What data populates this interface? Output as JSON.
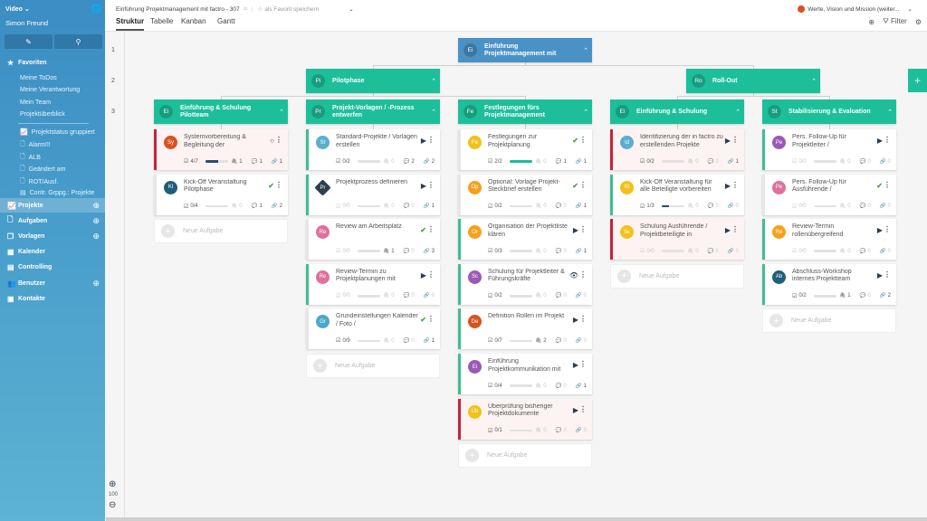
{
  "sidebar": {
    "workspace": "Video",
    "user": "Simon Freund",
    "favorites_label": "Favoriten",
    "favorites": [
      "Meine ToDos",
      "Meine Verantwortung",
      "Mein Team",
      "Projektüberblick"
    ],
    "saved_views": [
      "Projektstatus gruppiert",
      "Alarm!!!",
      "ALB",
      "Geändert am",
      "ROT/Ausf.",
      "Contr. Grppg.: Projekte"
    ],
    "nav": [
      {
        "label": "Projekte",
        "plus": true,
        "active": true,
        "icon": "chart-icon"
      },
      {
        "label": "Aufgaben",
        "plus": true,
        "icon": "file-icon"
      },
      {
        "label": "Vorlagen",
        "plus": true,
        "icon": "copy-icon"
      },
      {
        "label": "Kalender",
        "icon": "calendar-icon"
      },
      {
        "label": "Controlling",
        "icon": "calculator-icon"
      },
      {
        "label": "Benutzer",
        "plus": true,
        "icon": "users-icon"
      },
      {
        "label": "Kontakte",
        "icon": "contact-icon"
      }
    ]
  },
  "topbar": {
    "project_title": "Einführung Projektmanagement mit factro - 307",
    "favorite_label": "als Favorit speichern",
    "tabs": [
      "Struktur",
      "Tabelle",
      "Kanban",
      "Gantt"
    ],
    "active_tab": "Struktur",
    "project_selector": "Werte, Vision und Mission (weiter...",
    "project_color": "#d9531e",
    "filter_label": "Filter"
  },
  "zoom": {
    "level": "100"
  },
  "rows": [
    "1",
    "2",
    "3"
  ],
  "new_task_label": "Neue Aufgabe",
  "root": {
    "abbr": "Ei",
    "title": "Einführung Projektmanagement mit"
  },
  "phases": [
    {
      "abbr": "Pi",
      "title": "Pilotphase"
    },
    {
      "abbr": "Ro",
      "title": "Roll-Out"
    }
  ],
  "columns": [
    {
      "abbr": "Ei",
      "title": "Einführung & Schulung Pilotteam",
      "cards": [
        {
          "abbr": "Sy",
          "color": "#d9531e",
          "title": "Systemvorbereitung & Begleitung der",
          "status": "circle",
          "border": "red",
          "check": "4/7",
          "progress": 57,
          "bar": "#2c4a6e",
          "att": 1,
          "com": 1,
          "lnk": 1
        },
        {
          "abbr": "Kl",
          "color": "#1f5f7a",
          "title": "Kick-Off Veranstaltung Pilotphase",
          "status": "check",
          "border": "none",
          "check": "0/4",
          "progress": 0,
          "att": 0,
          "com": 1,
          "lnk": 2
        }
      ]
    },
    {
      "abbr": "Pr",
      "title": "Projekt-Vorlagen / -Prozess entwerfen",
      "cards": [
        {
          "abbr": "St",
          "color": "#5aaecf",
          "title": "Standard-Projekte / Vorlagen erstellen",
          "status": "play",
          "border": "green",
          "check": "0/2",
          "progress": 0,
          "att": 0,
          "com": 2,
          "lnk": 2
        },
        {
          "abbr": "Pr",
          "color": "#2c3e50",
          "shape": "diamond",
          "title": "Projektprozess definieren",
          "status": "play",
          "border": "green",
          "check": "0/0",
          "progress": 0,
          "att": 0,
          "com": 0,
          "lnk": 1
        },
        {
          "abbr": "Re",
          "color": "#e0709e",
          "title": "Review am Arbeitsplatz",
          "status": "check",
          "border": "none",
          "check": "0/0",
          "progress": 0,
          "att": 1,
          "com": 0,
          "lnk": 3
        },
        {
          "abbr": "Re",
          "color": "#e0709e",
          "title": "Review-Termin zu Projektplanungen mit",
          "status": "play",
          "border": "green",
          "check": "0/0",
          "progress": 0,
          "att": 0,
          "com": 0,
          "lnk": 0
        },
        {
          "abbr": "Gr",
          "color": "#4aa8c8",
          "title": "Grundeinstellungen Kalender / Foto /",
          "status": "check",
          "border": "none",
          "check": "0/9",
          "progress": 0,
          "att": 0,
          "com": 0,
          "lnk": 1
        }
      ]
    },
    {
      "abbr": "Fe",
      "title": "Festlegungen fürs Projektmanagement",
      "cards": [
        {
          "abbr": "Fe",
          "color": "#f2c11a",
          "title": "Festlegungen zur Projektplanung",
          "status": "check",
          "border": "none",
          "check": "2/2",
          "progress": 100,
          "bar": "#1abc9c",
          "att": 0,
          "com": 1,
          "lnk": 1
        },
        {
          "abbr": "Op",
          "color": "#f5a11c",
          "title": "Optional: Vorlage Projekt-Steckbrief erstellen",
          "status": "check",
          "border": "none",
          "check": "0/2",
          "progress": 0,
          "att": 0,
          "com": 0,
          "lnk": 1
        },
        {
          "abbr": "Or",
          "color": "#f5a11c",
          "title": "Organisation der Projektliste klären",
          "status": "play",
          "border": "green",
          "check": "0/3",
          "progress": 0,
          "att": 0,
          "com": 0,
          "lnk": 1
        },
        {
          "abbr": "Sc",
          "color": "#9b59b6",
          "title": "Schulung für Projektleiter & Führungskräfte",
          "status": "eye",
          "border": "green",
          "check": "0/2",
          "progress": 0,
          "att": 0,
          "com": 0,
          "lnk": 0
        },
        {
          "abbr": "De",
          "color": "#d9531e",
          "title": "Definition Rollen im Projekt",
          "status": "play",
          "border": "green",
          "check": "0/7",
          "progress": 0,
          "att": 2,
          "com": 0,
          "lnk": 0
        },
        {
          "abbr": "Ei",
          "color": "#9b59b6",
          "title": "Einführung Projektkommunikation mit",
          "status": "play",
          "border": "green",
          "check": "0/4",
          "progress": 0,
          "att": 0,
          "com": 0,
          "lnk": 1
        },
        {
          "abbr": "Üb",
          "color": "#f2c11a",
          "title": "Überprüfung bisheriger Projektdokumente",
          "status": "play",
          "border": "red",
          "check": "0/1",
          "progress": 0,
          "att": 0,
          "com": 0,
          "lnk": 0
        }
      ]
    },
    {
      "abbr": "Ei",
      "title": "Einführung & Schulung",
      "cards": [
        {
          "abbr": "Id",
          "color": "#5aaecf",
          "title": "Identifizierung der in factro zu erstellenden Projekte",
          "status": "play",
          "border": "red",
          "check": "0/2",
          "progress": 0,
          "att": 0,
          "com": 0,
          "lnk": 1
        },
        {
          "abbr": "Kl",
          "color": "#f2c11a",
          "title": "Kick-Off Veranstaltung für alle Beteiligte vorbereiten",
          "status": "play",
          "border": "green",
          "check": "1/3",
          "progress": 33,
          "bar": "#2c4a6e",
          "att": 0,
          "com": 0,
          "lnk": 0
        },
        {
          "abbr": "Sc",
          "color": "#f2c11a",
          "title": "Schulung Ausführende / Projektbeteiligte in",
          "status": "play",
          "border": "red",
          "check": "0/0",
          "progress": 0,
          "att": 0,
          "com": 0,
          "lnk": 0
        }
      ]
    },
    {
      "abbr": "St",
      "title": "Stabilisierung & Evaluation",
      "cards": [
        {
          "abbr": "Pe",
          "color": "#9b59b6",
          "title": "Pers. Follow-Up für Projektleiter /",
          "status": "play",
          "border": "green",
          "check": "0/0",
          "progress": 0,
          "att": 0,
          "com": 0,
          "lnk": 0
        },
        {
          "abbr": "Pe",
          "color": "#e0709e",
          "title": "Pers. Follow-Up für Ausführende /",
          "status": "check",
          "border": "none",
          "check": "0/0",
          "progress": 0,
          "att": 0,
          "com": 0,
          "lnk": 0
        },
        {
          "abbr": "Re",
          "color": "#f5a11c",
          "title": "Review-Termin rollenübergreifend",
          "status": "play",
          "border": "green",
          "check": "0/0",
          "progress": 0,
          "att": 0,
          "com": 0,
          "lnk": 0
        },
        {
          "abbr": "Ab",
          "color": "#1f5f7a",
          "title": "Abschluss-Workshop internes Projektteam",
          "status": "play",
          "border": "green",
          "check": "0/2",
          "progress": 0,
          "att": 1,
          "com": 0,
          "lnk": 2
        }
      ]
    }
  ]
}
